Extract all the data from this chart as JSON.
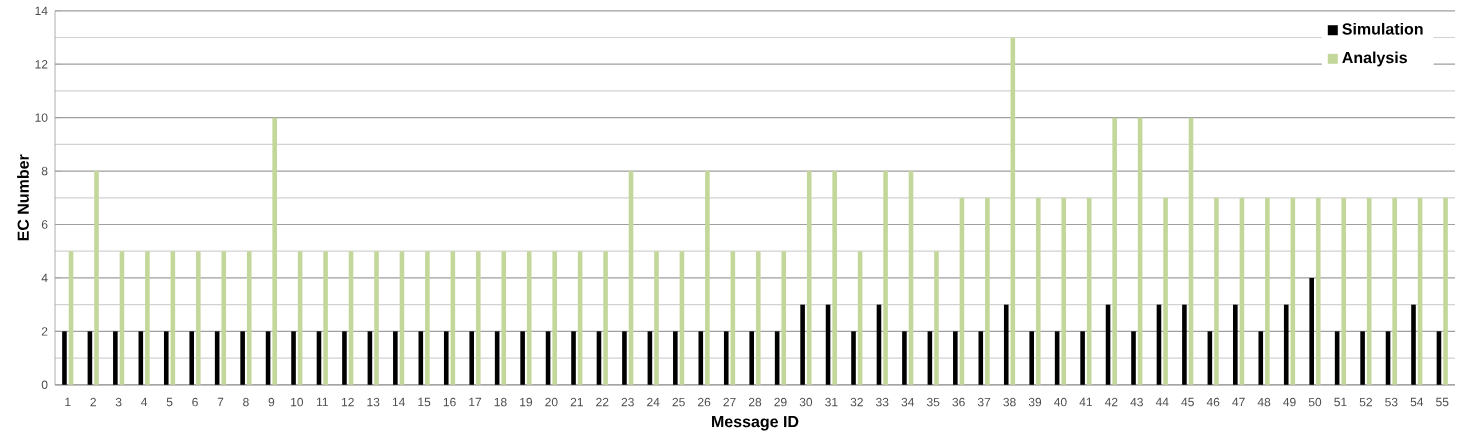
{
  "chart_data": {
    "type": "bar",
    "xlabel": "Message ID",
    "ylabel": "EC Number",
    "categories": [
      "1",
      "2",
      "3",
      "4",
      "5",
      "6",
      "7",
      "8",
      "9",
      "10",
      "11",
      "12",
      "13",
      "14",
      "15",
      "16",
      "17",
      "18",
      "19",
      "20",
      "21",
      "22",
      "23",
      "24",
      "25",
      "26",
      "27",
      "28",
      "29",
      "30",
      "31",
      "32",
      "33",
      "34",
      "35",
      "36",
      "37",
      "38",
      "39",
      "40",
      "41",
      "42",
      "43",
      "44",
      "45",
      "46",
      "47",
      "48",
      "49",
      "50",
      "51",
      "52",
      "53",
      "54",
      "55"
    ],
    "series": [
      {
        "name": "Simulation",
        "color": "#000000",
        "values": [
          2,
          2,
          2,
          2,
          2,
          2,
          2,
          2,
          2,
          2,
          2,
          2,
          2,
          2,
          2,
          2,
          2,
          2,
          2,
          2,
          2,
          2,
          2,
          2,
          2,
          2,
          2,
          2,
          2,
          3,
          3,
          2,
          3,
          2,
          2,
          2,
          2,
          3,
          2,
          2,
          2,
          3,
          2,
          3,
          3,
          2,
          3,
          2,
          3,
          4,
          2,
          2,
          2,
          3,
          2
        ]
      },
      {
        "name": "Analysis",
        "color": "#c4d79b",
        "values": [
          5,
          8,
          5,
          5,
          5,
          5,
          5,
          5,
          10,
          5,
          5,
          5,
          5,
          5,
          5,
          5,
          5,
          5,
          5,
          5,
          5,
          5,
          8,
          5,
          5,
          8,
          5,
          5,
          5,
          8,
          8,
          5,
          8,
          8,
          5,
          7,
          7,
          13,
          7,
          7,
          7,
          10,
          10,
          7,
          10,
          7,
          7,
          7,
          7,
          7,
          7,
          7,
          7,
          7,
          7
        ]
      }
    ],
    "ylim": [
      0,
      14
    ],
    "yticks": [
      0,
      2,
      4,
      6,
      8,
      10,
      12,
      14
    ],
    "grid": "y",
    "legend": "top right"
  }
}
